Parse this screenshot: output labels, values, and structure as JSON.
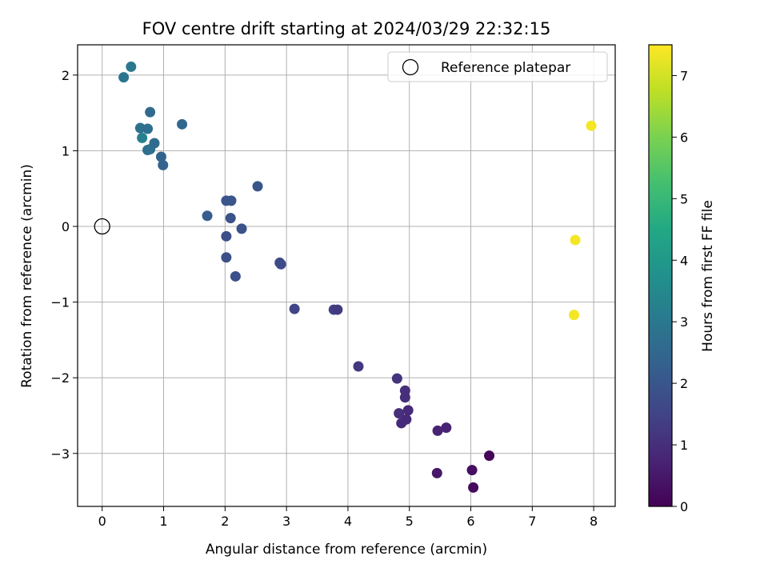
{
  "chart_data": {
    "type": "scatter",
    "title": "FOV centre drift starting at 2024/03/29 22:32:15",
    "xlabel": "Angular distance from reference (arcmin)",
    "ylabel": "Rotation from reference (arcmin)",
    "xlim": [
      -0.4,
      8.35
    ],
    "ylim": [
      -3.7,
      2.4
    ],
    "xticks": [
      0,
      1,
      2,
      3,
      4,
      5,
      6,
      7,
      8
    ],
    "yticks": [
      -3,
      -2,
      -1,
      0,
      1,
      2
    ],
    "grid": true,
    "legend": {
      "label": "Reference platepar",
      "position": "top-right"
    },
    "reference_point": {
      "x": 0,
      "y": 0
    },
    "colorbar": {
      "label": "Hours from first FF file",
      "colormap": "viridis",
      "range": [
        0,
        7.5
      ],
      "ticks": [
        0,
        1,
        2,
        3,
        4,
        5,
        6,
        7
      ]
    },
    "points": [
      {
        "x": 0.35,
        "y": 1.97,
        "c": 2.9
      },
      {
        "x": 0.47,
        "y": 2.11,
        "c": 3.0
      },
      {
        "x": 0.62,
        "y": 1.3,
        "c": 2.8
      },
      {
        "x": 0.65,
        "y": 1.17,
        "c": 3.2
      },
      {
        "x": 0.74,
        "y": 1.29,
        "c": 2.7
      },
      {
        "x": 0.78,
        "y": 1.51,
        "c": 2.6
      },
      {
        "x": 0.74,
        "y": 1.01,
        "c": 2.7
      },
      {
        "x": 0.78,
        "y": 1.02,
        "c": 2.8
      },
      {
        "x": 0.85,
        "y": 1.1,
        "c": 2.6
      },
      {
        "x": 0.96,
        "y": 0.92,
        "c": 2.4
      },
      {
        "x": 0.99,
        "y": 0.81,
        "c": 2.4
      },
      {
        "x": 1.3,
        "y": 1.35,
        "c": 2.5
      },
      {
        "x": 1.71,
        "y": 0.14,
        "c": 2.2
      },
      {
        "x": 2.02,
        "y": 0.34,
        "c": 2.0
      },
      {
        "x": 2.1,
        "y": 0.34,
        "c": 2.0
      },
      {
        "x": 2.09,
        "y": 0.11,
        "c": 1.9
      },
      {
        "x": 2.27,
        "y": -0.03,
        "c": 1.9
      },
      {
        "x": 2.02,
        "y": -0.13,
        "c": 1.8
      },
      {
        "x": 2.02,
        "y": -0.41,
        "c": 1.8
      },
      {
        "x": 2.17,
        "y": -0.66,
        "c": 1.8
      },
      {
        "x": 2.53,
        "y": 0.53,
        "c": 2.0
      },
      {
        "x": 2.89,
        "y": -0.48,
        "c": 1.7
      },
      {
        "x": 2.91,
        "y": -0.5,
        "c": 1.7
      },
      {
        "x": 3.13,
        "y": -1.09,
        "c": 1.5
      },
      {
        "x": 3.77,
        "y": -1.1,
        "c": 1.4
      },
      {
        "x": 3.83,
        "y": -1.1,
        "c": 1.3
      },
      {
        "x": 4.17,
        "y": -1.85,
        "c": 1.2
      },
      {
        "x": 4.8,
        "y": -2.01,
        "c": 1.1
      },
      {
        "x": 4.93,
        "y": -2.17,
        "c": 1.0
      },
      {
        "x": 4.93,
        "y": -2.26,
        "c": 1.0
      },
      {
        "x": 4.83,
        "y": -2.47,
        "c": 1.0
      },
      {
        "x": 4.98,
        "y": -2.43,
        "c": 0.9
      },
      {
        "x": 4.95,
        "y": -2.55,
        "c": 0.9
      },
      {
        "x": 4.87,
        "y": -2.6,
        "c": 0.9
      },
      {
        "x": 5.46,
        "y": -2.7,
        "c": 0.7
      },
      {
        "x": 5.6,
        "y": -2.66,
        "c": 0.7
      },
      {
        "x": 5.45,
        "y": -3.26,
        "c": 0.5
      },
      {
        "x": 6.02,
        "y": -3.22,
        "c": 0.3
      },
      {
        "x": 6.04,
        "y": -3.45,
        "c": 0.2
      },
      {
        "x": 6.3,
        "y": -3.03,
        "c": 0.1
      },
      {
        "x": 7.96,
        "y": 1.33,
        "c": 7.4
      },
      {
        "x": 7.7,
        "y": -0.18,
        "c": 7.4
      },
      {
        "x": 7.68,
        "y": -1.17,
        "c": 7.4
      }
    ]
  }
}
